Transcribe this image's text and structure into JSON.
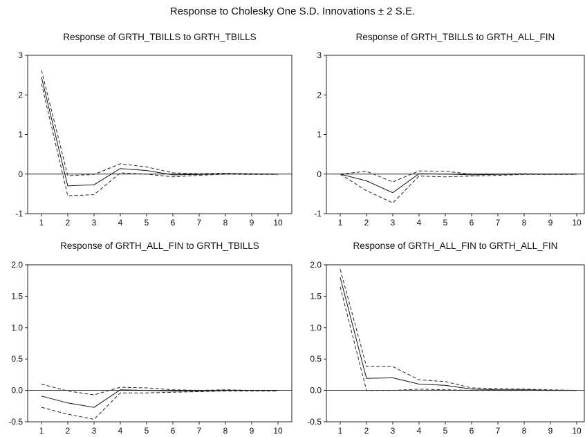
{
  "title": "Response to Cholesky One S.D. Innovations ± 2 S.E.",
  "chart_data": [
    {
      "type": "line",
      "title": "Response of GRTH_TBILLS to GRTH_TBILLS",
      "x": [
        1,
        2,
        3,
        4,
        5,
        6,
        7,
        8,
        9,
        10
      ],
      "ylim": [
        -1,
        3
      ],
      "yticks": [
        "-1",
        "0",
        "1",
        "2",
        "3"
      ],
      "series": [
        {
          "role": "response",
          "values": [
            2.45,
            -0.3,
            -0.27,
            0.14,
            0.09,
            -0.02,
            -0.01,
            0.01,
            0.0,
            0.0
          ]
        },
        {
          "role": "upper",
          "values": [
            2.62,
            -0.04,
            -0.01,
            0.26,
            0.18,
            0.03,
            0.01,
            0.02,
            0.01,
            0.0
          ]
        },
        {
          "role": "lower",
          "values": [
            2.28,
            -0.55,
            -0.52,
            0.03,
            0.0,
            -0.07,
            -0.03,
            0.0,
            -0.01,
            -0.01
          ]
        }
      ]
    },
    {
      "type": "line",
      "title": "Response of GRTH_TBILLS to GRTH_ALL_FIN",
      "x": [
        1,
        2,
        3,
        4,
        5,
        6,
        7,
        8,
        9,
        10
      ],
      "ylim": [
        -1,
        3
      ],
      "yticks": [
        "-1",
        "0",
        "1",
        "2",
        "3"
      ],
      "series": [
        {
          "role": "response",
          "values": [
            0.0,
            -0.17,
            -0.47,
            0.01,
            0.0,
            -0.02,
            -0.01,
            0.0,
            0.0,
            0.0
          ]
        },
        {
          "role": "upper",
          "values": [
            0.0,
            0.07,
            -0.2,
            0.08,
            0.07,
            0.0,
            0.0,
            0.01,
            0.0,
            0.0
          ]
        },
        {
          "role": "lower",
          "values": [
            0.0,
            -0.42,
            -0.73,
            -0.05,
            -0.07,
            -0.05,
            -0.03,
            -0.01,
            -0.01,
            -0.01
          ]
        }
      ]
    },
    {
      "type": "line",
      "title": "Response of GRTH_ALL_FIN to GRTH_TBILLS",
      "x": [
        1,
        2,
        3,
        4,
        5,
        6,
        7,
        8,
        9,
        10
      ],
      "ylim": [
        -0.5,
        2.0
      ],
      "yticks": [
        "-0.5",
        "0.0",
        "0.5",
        "1.0",
        "1.5",
        "2.0"
      ],
      "series": [
        {
          "role": "response",
          "values": [
            -0.09,
            -0.2,
            -0.27,
            0.01,
            0.0,
            -0.01,
            -0.01,
            0.0,
            0.0,
            0.0
          ]
        },
        {
          "role": "upper",
          "values": [
            0.1,
            -0.01,
            -0.07,
            0.05,
            0.04,
            0.01,
            0.0,
            0.01,
            0.0,
            0.0
          ]
        },
        {
          "role": "lower",
          "values": [
            -0.27,
            -0.38,
            -0.46,
            -0.04,
            -0.04,
            -0.03,
            -0.02,
            -0.01,
            -0.01,
            -0.01
          ]
        }
      ]
    },
    {
      "type": "line",
      "title": "Response of GRTH_ALL_FIN to GRTH_ALL_FIN",
      "x": [
        1,
        2,
        3,
        4,
        5,
        6,
        7,
        8,
        9,
        10
      ],
      "ylim": [
        -0.5,
        2.0
      ],
      "yticks": [
        "-0.5",
        "0.0",
        "0.5",
        "1.0",
        "1.5",
        "2.0"
      ],
      "series": [
        {
          "role": "response",
          "values": [
            1.8,
            0.19,
            0.2,
            0.1,
            0.08,
            0.02,
            0.01,
            0.01,
            0.0,
            0.0
          ]
        },
        {
          "role": "upper",
          "values": [
            1.93,
            0.38,
            0.38,
            0.17,
            0.14,
            0.04,
            0.03,
            0.02,
            0.01,
            0.0
          ]
        },
        {
          "role": "lower",
          "values": [
            1.65,
            0.0,
            0.0,
            0.02,
            0.01,
            0.0,
            0.0,
            0.0,
            0.0,
            0.0
          ]
        }
      ]
    }
  ]
}
